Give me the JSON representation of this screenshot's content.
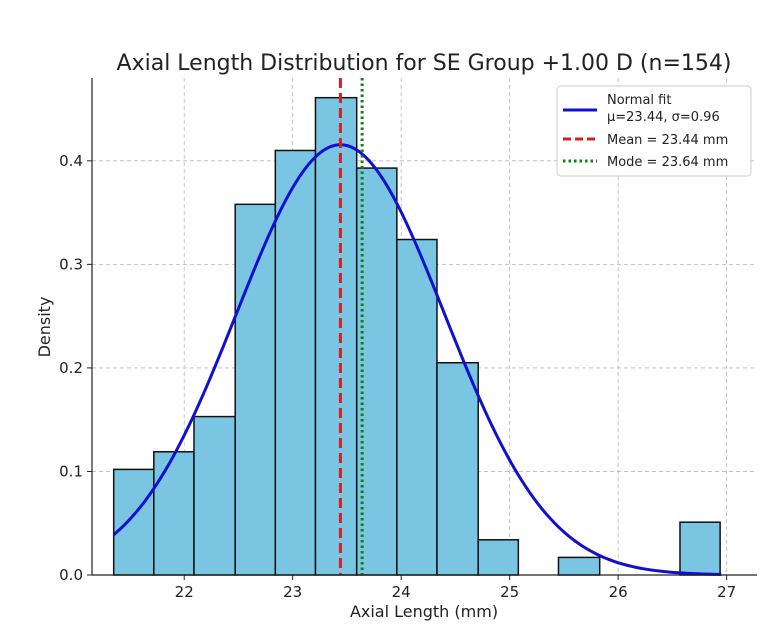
{
  "chart_data": {
    "type": "bar",
    "title": "Axial Length Distribution for SE Group +1.00 D (n=154)",
    "xlabel": "Axial Length (mm)",
    "ylabel": "Density",
    "xlim": [
      21.15,
      27.28
    ],
    "ylim": [
      0,
      0.48
    ],
    "xticks": [
      22,
      23,
      24,
      25,
      26,
      27
    ],
    "yticks": [
      0.0,
      0.1,
      0.2,
      0.3,
      0.4
    ],
    "ytick_labels": [
      "0.0",
      "0.1",
      "0.2",
      "0.3",
      "0.4"
    ],
    "grid": true,
    "histogram": {
      "bin_edges": [
        21.35,
        21.72,
        22.09,
        22.47,
        22.84,
        23.21,
        23.59,
        23.96,
        24.33,
        24.71,
        25.08,
        25.45,
        25.83,
        26.2,
        26.57,
        26.94,
        27.31
      ],
      "densities": [
        0.102,
        0.119,
        0.153,
        0.358,
        0.41,
        0.461,
        0.393,
        0.324,
        0.205,
        0.034,
        0.0,
        0.017,
        0.0,
        0.0,
        0.051,
        0.0
      ],
      "color": "#7ac6e2",
      "edge_color": "#111111"
    },
    "series": [
      {
        "name": "Normal fit",
        "kind": "normal_pdf",
        "mu": 23.44,
        "sigma": 0.96,
        "x_range": [
          21.35,
          26.95
        ],
        "color": "#1010d0"
      },
      {
        "name": "Mean = 23.44 mm",
        "kind": "vline",
        "x": 23.44,
        "color": "#d62020",
        "style": "dashed"
      },
      {
        "name": "Mode = 23.64 mm",
        "kind": "vline",
        "x": 23.64,
        "color": "#108010",
        "style": "dotted"
      }
    ],
    "legend": {
      "position": "top-right",
      "entries": [
        {
          "label": "Normal fit",
          "label2": "μ=23.44, σ=0.96",
          "color": "#1010d0",
          "style": "solid"
        },
        {
          "label": "Mean = 23.44 mm",
          "color": "#d62020",
          "style": "dashed"
        },
        {
          "label": "Mode = 23.64 mm",
          "color": "#108010",
          "style": "dotted"
        }
      ]
    }
  }
}
